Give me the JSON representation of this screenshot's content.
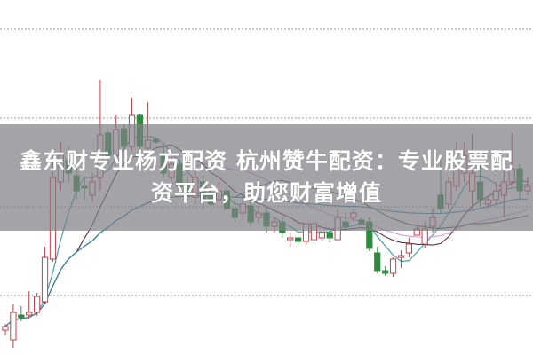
{
  "banner": {
    "title": "鑫东财专业杨方配资 杭州赞牛配资：专业股票配资平台，助您财富增值"
  },
  "chart_data": {
    "type": "candlestick",
    "title": "",
    "xlabel": "",
    "ylabel": "",
    "ylim": [
      0,
      40
    ],
    "grid": true,
    "colors": {
      "up": "#c0404a",
      "down": "#2e8b3e",
      "ma": [
        "#3a9aa8",
        "#5a2b4a",
        "#d898e0",
        "#3b6b3b",
        "#2a86a8"
      ]
    },
    "moving_averages": [
      5,
      10,
      20,
      30,
      60
    ],
    "candles": [
      [
        2.8,
        3.2,
        3.5,
        2.2
      ],
      [
        1.7,
        4.8,
        5.7,
        0.8
      ],
      [
        4.5,
        4.2,
        5.5,
        3.8
      ],
      [
        4.5,
        4.8,
        7.2,
        4.0
      ],
      [
        4.8,
        6.6,
        7.0,
        4.4
      ],
      [
        6.0,
        11.0,
        12.2,
        5.8
      ],
      [
        10.8,
        20.0,
        22.0,
        10.5
      ],
      [
        19.5,
        22.5,
        24.0,
        18.5
      ],
      [
        22.0,
        20.5,
        23.5,
        19.5
      ],
      [
        20.2,
        18.5,
        21.5,
        17.5
      ],
      [
        19.0,
        18.8,
        20.0,
        17.5
      ],
      [
        18.0,
        19.5,
        20.5,
        17.2
      ],
      [
        20.0,
        24.8,
        31.0,
        18.5
      ],
      [
        25.0,
        22.5,
        25.2,
        21.5
      ],
      [
        22.5,
        25.4,
        27.0,
        22.0
      ],
      [
        25.5,
        23.5,
        26.0,
        23.0
      ],
      [
        23.5,
        27.0,
        29.0,
        23.0
      ],
      [
        27.0,
        23.5,
        27.2,
        22.8
      ],
      [
        23.3,
        24.2,
        28.5,
        22.8
      ],
      [
        24.3,
        24.0,
        24.5,
        23.8
      ],
      [
        22.5,
        20.5,
        23.5,
        20.0
      ],
      [
        20.0,
        21.5,
        23.0,
        19.5
      ],
      [
        21.5,
        19.0,
        22.0,
        18.5
      ],
      [
        19.0,
        18.0,
        20.0,
        17.5
      ],
      [
        17.8,
        20.0,
        21.0,
        17.0
      ],
      [
        19.5,
        17.5,
        20.2,
        16.5
      ],
      [
        18.0,
        17.0,
        18.5,
        16.0
      ],
      [
        17.5,
        18.5,
        19.5,
        16.8
      ],
      [
        18.5,
        16.5,
        19.0,
        16.0
      ],
      [
        16.5,
        15.5,
        17.5,
        15.0
      ],
      [
        16.0,
        17.0,
        18.0,
        15.2
      ],
      [
        16.8,
        15.0,
        17.5,
        14.5
      ],
      [
        15.5,
        16.0,
        16.8,
        14.8
      ],
      [
        16.0,
        14.5,
        16.8,
        13.8
      ],
      [
        14.5,
        15.0,
        15.5,
        13.8
      ],
      [
        15.0,
        13.8,
        15.5,
        13.2
      ],
      [
        13.0,
        13.2,
        13.8,
        12.2
      ],
      [
        13.2,
        12.8,
        13.6,
        12.4
      ],
      [
        12.8,
        14.8,
        15.2,
        12.4
      ],
      [
        13.0,
        14.8,
        15.2,
        12.5
      ],
      [
        13.2,
        13.8,
        14.2,
        12.8
      ],
      [
        13.8,
        13.2,
        14.0,
        12.7
      ],
      [
        13.0,
        15.5,
        16.5,
        12.8
      ],
      [
        15.0,
        14.5,
        16.0,
        14.0
      ],
      [
        15.5,
        16.0,
        16.5,
        15.0
      ],
      [
        15.2,
        14.8,
        15.5,
        14.5
      ],
      [
        15.0,
        12.0,
        15.5,
        11.7
      ],
      [
        11.5,
        9.5,
        12.2,
        9.2
      ],
      [
        9.5,
        9.2,
        10.0,
        8.9
      ],
      [
        9.2,
        10.8,
        11.0,
        8.8
      ],
      [
        11.0,
        11.2,
        11.8,
        9.8
      ],
      [
        11.5,
        12.5,
        13.2,
        11.0
      ],
      [
        13.5,
        14.2,
        14.5,
        13.5
      ],
      [
        12.5,
        14.2,
        15.0,
        12.0
      ],
      [
        14.5,
        15.5,
        16.5,
        13.8
      ],
      [
        18.0,
        16.5,
        22.5,
        16.0
      ],
      [
        17.0,
        19.5,
        20.0,
        16.5
      ],
      [
        19.0,
        21.0,
        24.0,
        18.5
      ],
      [
        20.5,
        22.5,
        24.0,
        19.5
      ],
      [
        18.5,
        20.5,
        25.0,
        16.5
      ],
      [
        19.5,
        17.5,
        22.0,
        16.8
      ],
      [
        17.0,
        17.5,
        18.0,
        16.5
      ],
      [
        17.5,
        18.5,
        19.5,
        17.0
      ],
      [
        18.0,
        19.5,
        21.0,
        15.5
      ],
      [
        19.5,
        21.0,
        25.0,
        19.0
      ],
      [
        21.0,
        18.5,
        21.5,
        17.5
      ],
      [
        18.5,
        19.0,
        20.0,
        18.0
      ]
    ]
  }
}
